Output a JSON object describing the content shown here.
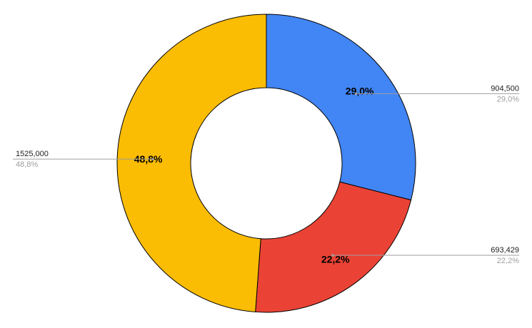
{
  "chart_data": {
    "type": "pie",
    "donut": true,
    "start_angle_deg": 0,
    "direction": "clockwise",
    "legend": "none",
    "slices": [
      {
        "value": 904500,
        "value_label": "904,500",
        "percent_label": "29,0%",
        "color": "#4285f4"
      },
      {
        "value": 693429,
        "value_label": "693,429",
        "percent_label": "22,2%",
        "color": "#ea4335"
      },
      {
        "value": 1525000,
        "value_label": "1525,000",
        "percent_label": "48,8%",
        "color": "#fbbc04"
      }
    ]
  }
}
